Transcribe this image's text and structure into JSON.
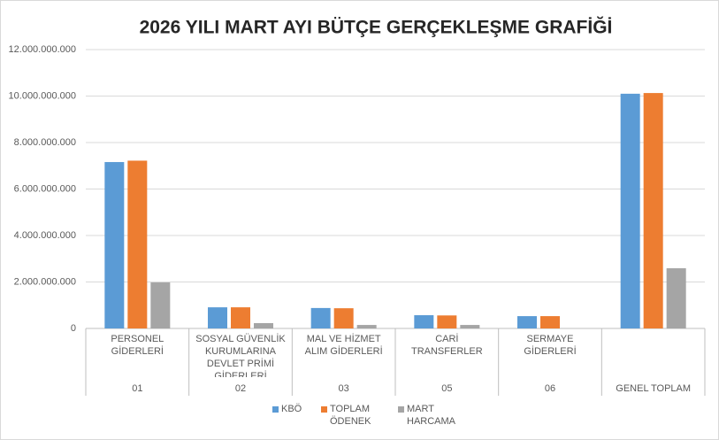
{
  "chart_data": {
    "type": "bar",
    "title": "2026 YILI MART AYI BÜTÇE GERÇEKLEŞME GRAFİĞİ",
    "categories": [
      "PERSONEL GİDERLERİ",
      "SOSYAL GÜVENLİK KURUMLARINA DEVLET PRİMİ GİDERLERİ",
      "MAL VE HİZMET ALIM GİDERLERİ",
      "CARİ TRANSFERLER",
      "SERMAYE GİDERLERİ",
      null
    ],
    "groups": [
      "01",
      "02",
      "03",
      "05",
      "06",
      "GENEL TOPLAM"
    ],
    "series": [
      {
        "name": "KBÖ",
        "color": "#5b9bd5",
        "values": [
          7160000000,
          910000000,
          880000000,
          570000000,
          530000000,
          10100000000
        ]
      },
      {
        "name": "TOPLAM ÖDENEK",
        "color": "#ed7d31",
        "values": [
          7220000000,
          910000000,
          870000000,
          560000000,
          530000000,
          10130000000
        ]
      },
      {
        "name": "MART HARCAMA",
        "color": "#a5a5a5",
        "values": [
          1980000000,
          230000000,
          150000000,
          150000000,
          0,
          2590000000
        ]
      }
    ],
    "ylim": [
      0,
      12000000000
    ],
    "yticks": [
      0,
      {
        "value": 2000000000,
        "label": "2.000.000.000"
      },
      {
        "value": 4000000000,
        "label": "4.000.000.000"
      },
      {
        "value": 6000000000,
        "label": "6.000.000.000"
      },
      {
        "value": 8000000000,
        "label": "8.000.000.000"
      },
      {
        "value": 10000000000,
        "label": "10.000.000.000"
      },
      {
        "value": 12000000000,
        "label": "12.000.000.000"
      }
    ],
    "grid": true,
    "legend": "bottom"
  }
}
